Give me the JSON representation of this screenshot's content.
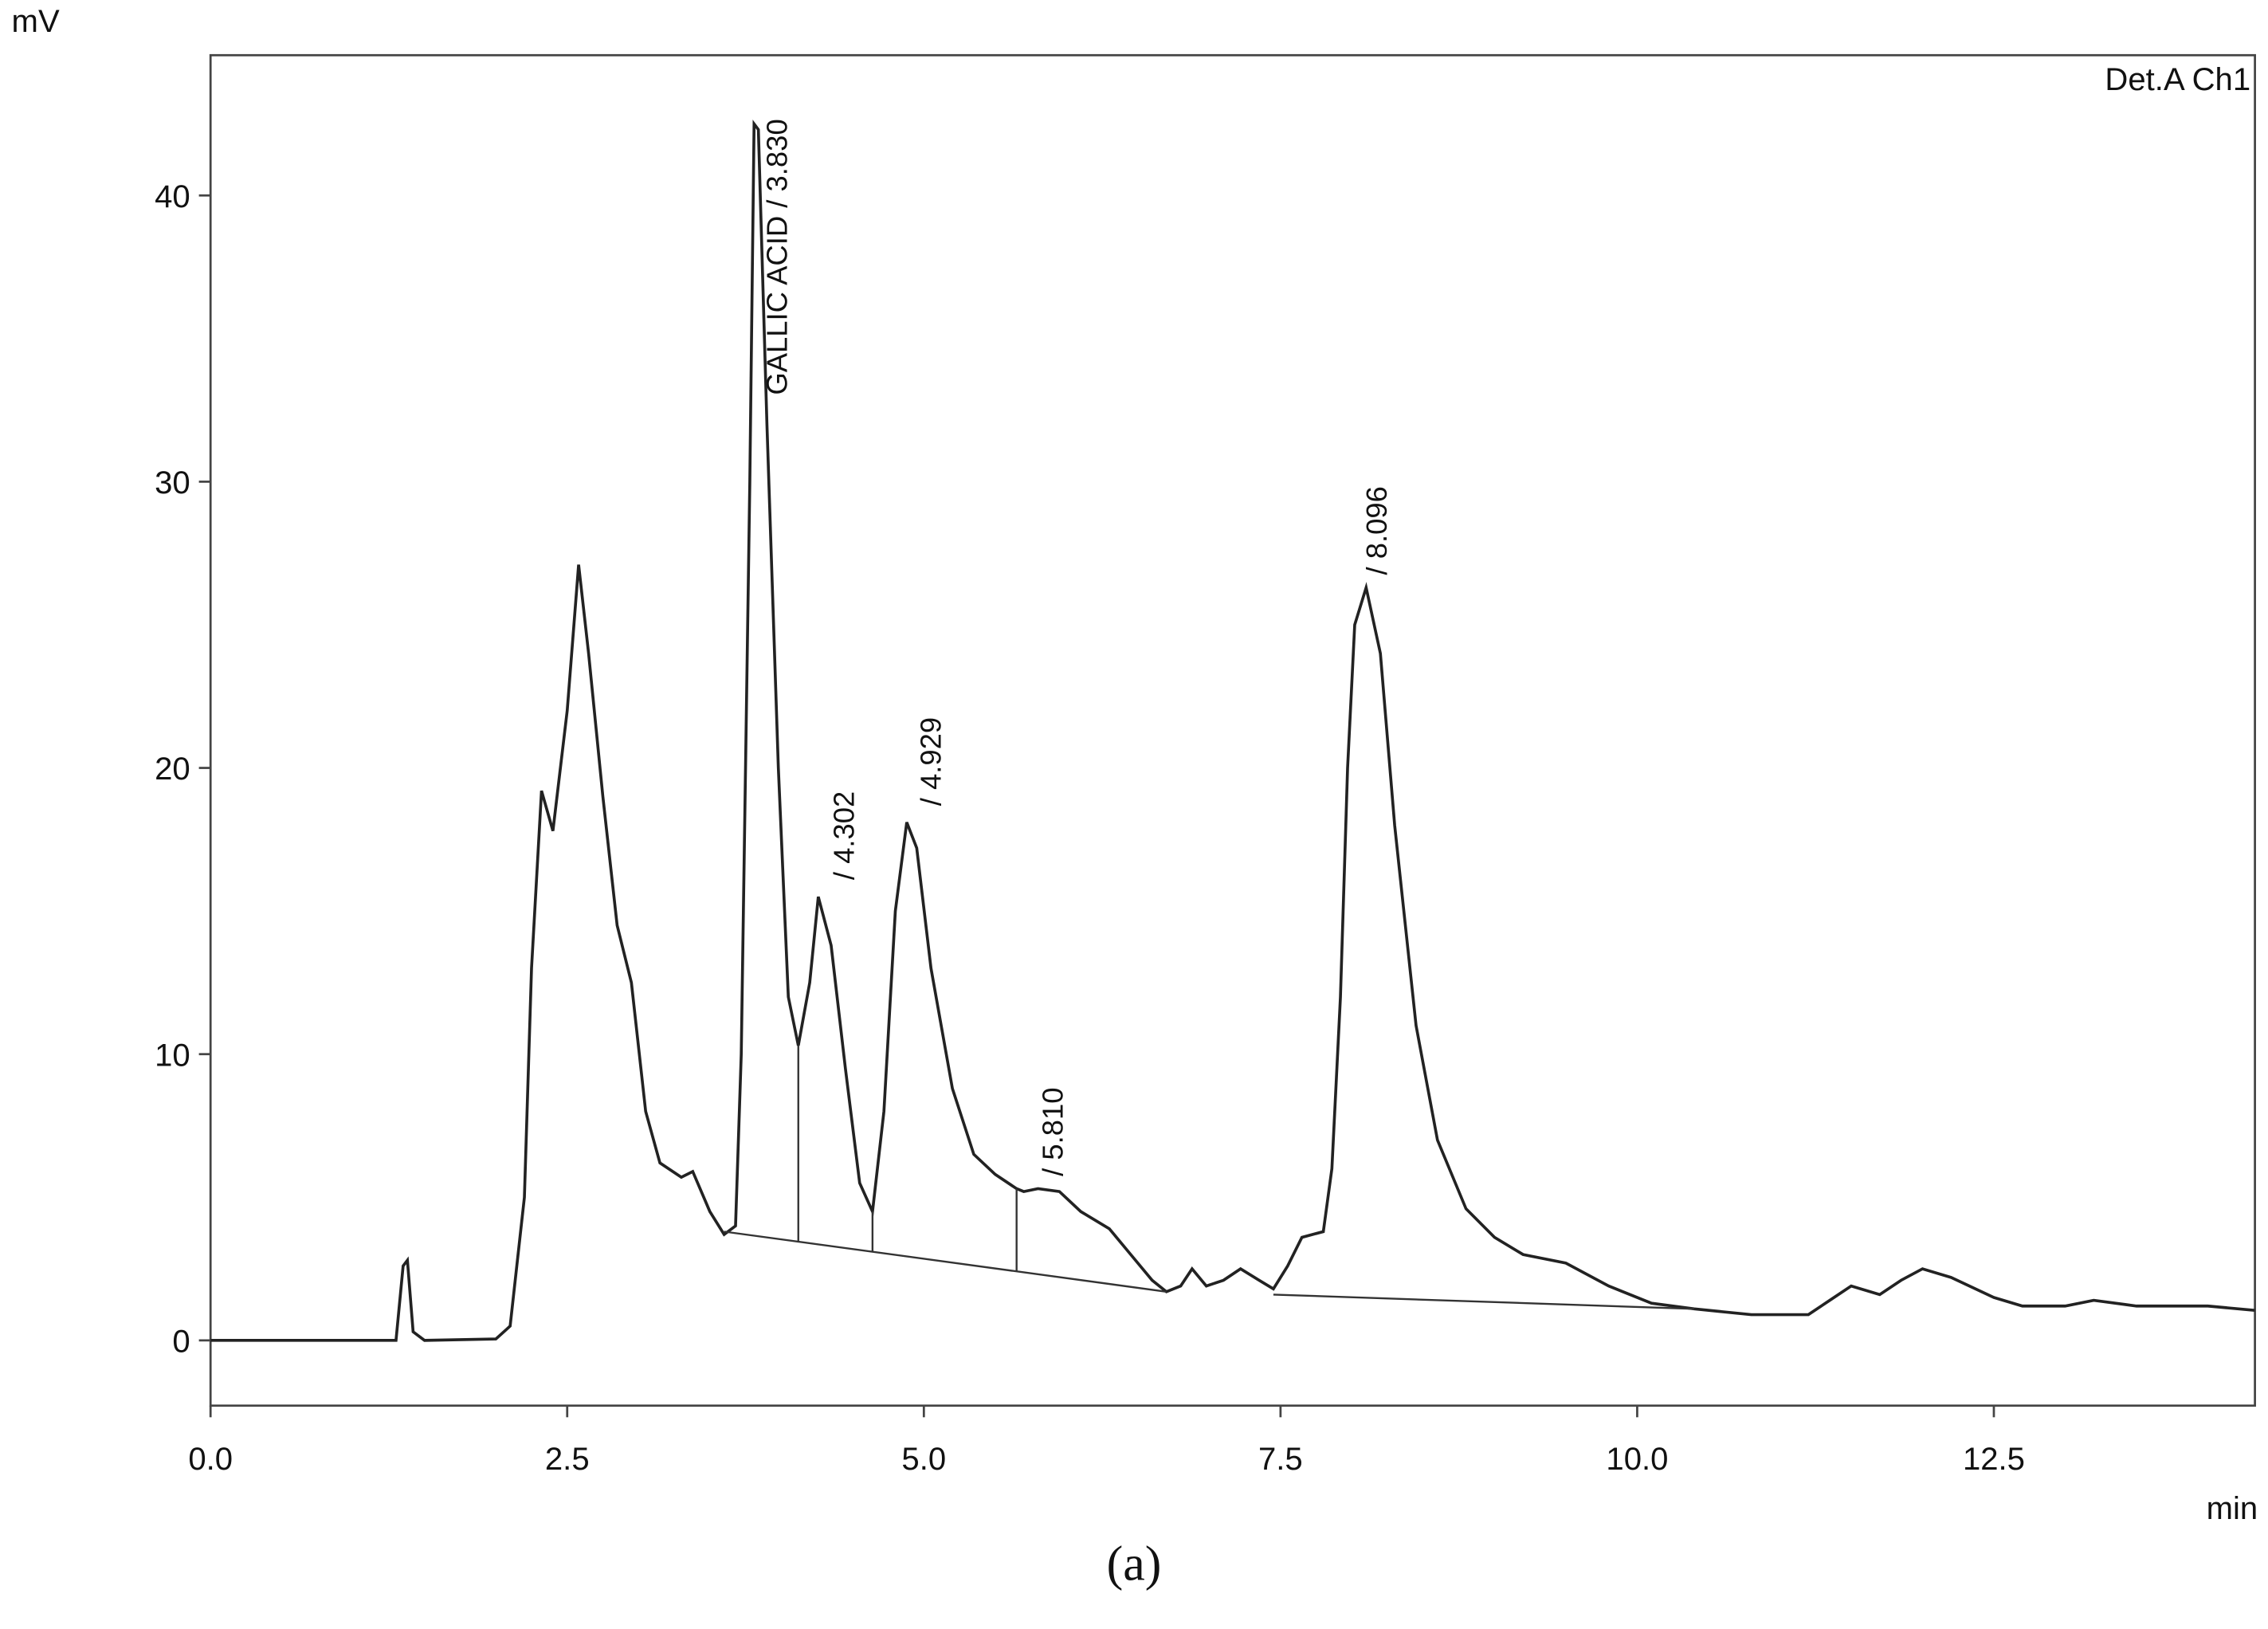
{
  "chart_data": {
    "type": "line",
    "y_unit": "mV",
    "x_label": "min",
    "detector": "Det.A Ch1",
    "caption": "(a)",
    "xlim": [
      0,
      14.33
    ],
    "ylim": [
      -2.28,
      44.9
    ],
    "xticks": [
      {
        "value": 0,
        "label": "0.0"
      },
      2.5,
      {
        "value": 5,
        "label": "5.0"
      },
      7.5,
      {
        "value": 10,
        "label": "10.0"
      },
      12.5
    ],
    "yticks": [
      0,
      10,
      20,
      30,
      40
    ],
    "x": [
      0,
      1.3,
      1.35,
      1.38,
      1.42,
      1.5,
      2.0,
      2.1,
      2.2,
      2.25,
      2.32,
      2.4,
      2.5,
      2.58,
      2.65,
      2.75,
      2.85,
      2.95,
      3.05,
      3.15,
      3.3,
      3.38,
      3.5,
      3.6,
      3.68,
      3.72,
      3.78,
      3.81,
      3.84,
      3.9,
      3.98,
      4.05,
      4.12,
      4.2,
      4.26,
      4.35,
      4.45,
      4.55,
      4.64,
      4.72,
      4.8,
      4.88,
      4.95,
      5.05,
      5.2,
      5.35,
      5.5,
      5.65,
      5.7,
      5.8,
      5.95,
      6.1,
      6.3,
      6.45,
      6.6,
      6.7,
      6.8,
      6.88,
      6.98,
      7.1,
      7.22,
      7.35,
      7.45,
      7.55,
      7.65,
      7.8,
      7.86,
      7.92,
      7.97,
      8.02,
      8.1,
      8.2,
      8.3,
      8.45,
      8.6,
      8.8,
      9.0,
      9.2,
      9.5,
      9.8,
      10.1,
      10.4,
      10.8,
      11.2,
      11.35,
      11.5,
      11.7,
      11.85,
      12.0,
      12.2,
      12.5,
      12.7,
      13.0,
      13.2,
      13.5,
      14.0,
      14.33
    ],
    "series": [
      {
        "color": "#222222",
        "values": [
          0,
          0,
          2.6,
          2.8,
          0.3,
          0,
          0.05,
          0.5,
          5,
          13,
          19.2,
          17.8,
          22,
          27.1,
          24,
          19,
          14.5,
          12.5,
          8,
          6.2,
          5.7,
          5.9,
          4.5,
          3.7,
          4,
          10,
          30,
          42.5,
          42.3,
          32,
          20,
          12,
          10.3,
          12.5,
          15.5,
          13.8,
          9.5,
          5.5,
          4.5,
          8,
          15,
          18.1,
          17.2,
          13,
          8.8,
          6.5,
          5.8,
          5.3,
          5.2,
          5.3,
          5.2,
          4.5,
          3.9,
          3.0,
          2.1,
          1.7,
          1.9,
          2.5,
          1.9,
          2.1,
          2.5,
          2.1,
          1.8,
          2.6,
          3.6,
          3.8,
          6,
          12,
          20,
          25,
          26.3,
          24,
          18,
          11,
          7,
          4.6,
          3.6,
          3,
          2.7,
          1.9,
          1.3,
          1.1,
          0.9,
          0.9,
          1.4,
          1.9,
          1.6,
          2.1,
          2.5,
          2.2,
          1.5,
          1.2,
          1.2,
          1.4,
          1.2,
          1.2,
          1.05
        ]
      }
    ],
    "baseline": [
      {
        "x": [
          3.6,
          6.7
        ],
        "values": [
          3.8,
          1.7
        ]
      },
      {
        "x": [
          7.45,
          10.4
        ],
        "values": [
          1.6,
          1.1
        ]
      }
    ],
    "drop_lines": [
      4.12,
      4.64,
      5.65
    ],
    "annotations": [
      "GALLIC ACID / 3.830",
      "/ 4.302",
      "/ 4.929",
      "/ 5.810",
      "/ 8.096"
    ]
  }
}
